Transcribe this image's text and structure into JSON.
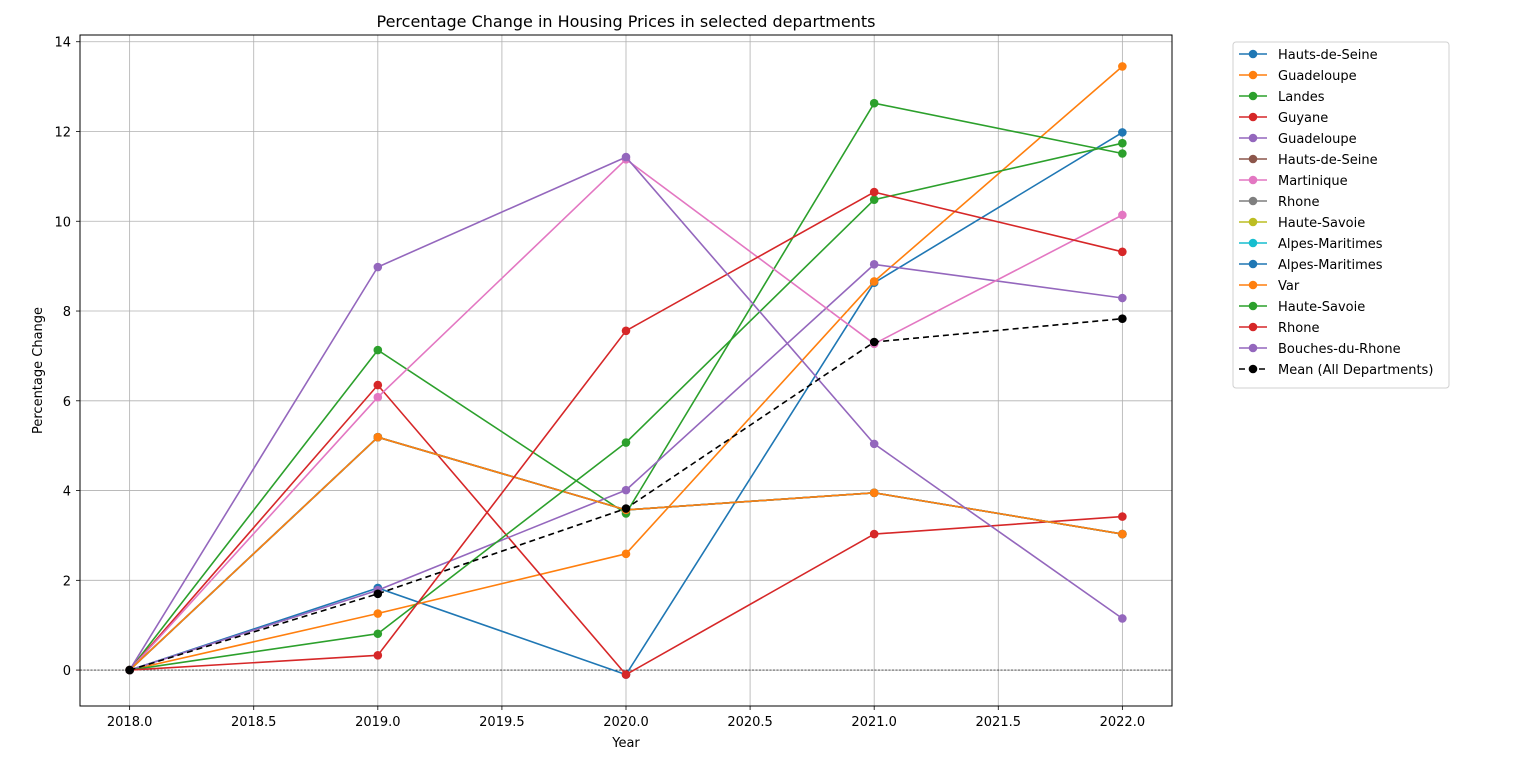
{
  "chart_data": {
    "type": "line",
    "title": "Percentage Change in Housing Prices in selected departments",
    "xlabel": "Year",
    "ylabel": "Percentage Change",
    "xlim": [
      2017.8,
      2022.2
    ],
    "ylim": [
      -0.8,
      14.15
    ],
    "xticks": [
      2018.0,
      2018.5,
      2019.0,
      2019.5,
      2020.0,
      2020.5,
      2021.0,
      2021.5,
      2022.0
    ],
    "xtick_labels": [
      "2018.0",
      "2018.5",
      "2019.0",
      "2019.5",
      "2020.0",
      "2020.5",
      "2021.0",
      "2021.5",
      "2022.0"
    ],
    "yticks": [
      0,
      2,
      4,
      6,
      8,
      10,
      12,
      14
    ],
    "ytick_labels": [
      "0",
      "2",
      "4",
      "6",
      "8",
      "10",
      "12",
      "14"
    ],
    "grid": true,
    "zero_line": true,
    "legend_position": "outside-right-top",
    "x": [
      2018,
      2019,
      2020,
      2021,
      2022
    ],
    "series": [
      {
        "name": "Hauts-de-Seine",
        "color": "#1f77b4",
        "style": "solid",
        "values": [
          0,
          1.83,
          -0.1,
          8.63,
          11.98
        ]
      },
      {
        "name": "Guadeloupe",
        "color": "#ff7f0e",
        "style": "solid",
        "values": [
          0,
          1.26,
          2.59,
          8.66,
          13.45
        ]
      },
      {
        "name": "Landes",
        "color": "#2ca02c",
        "style": "solid",
        "values": [
          0,
          7.13,
          3.49,
          12.63,
          11.51
        ]
      },
      {
        "name": "Guyane",
        "color": "#d62728",
        "style": "solid",
        "values": [
          0,
          6.35,
          -0.1,
          3.03,
          3.42
        ]
      },
      {
        "name": "Guadeloupe",
        "color": "#9467bd",
        "style": "solid",
        "values": [
          0,
          1.78,
          4.01,
          9.04,
          8.29
        ]
      },
      {
        "name": "Hauts-de-Seine",
        "color": "#8c564b",
        "style": "solid",
        "values": [
          0,
          5.19,
          3.57,
          3.95,
          3.03
        ]
      },
      {
        "name": "Martinique",
        "color": "#e377c2",
        "style": "solid",
        "values": [
          0,
          6.08,
          11.38,
          7.27,
          10.14
        ]
      },
      {
        "name": "Rhone",
        "color": "#7f7f7f",
        "style": "solid",
        "values": [
          0,
          5.19,
          3.57,
          3.95,
          3.03
        ]
      },
      {
        "name": "Haute-Savoie",
        "color": "#bcbd22",
        "style": "solid",
        "values": [
          0,
          5.19,
          3.57,
          3.95,
          3.03
        ]
      },
      {
        "name": "Alpes-Maritimes",
        "color": "#17becf",
        "style": "solid",
        "values": [
          0,
          5.19,
          3.57,
          3.95,
          3.03
        ]
      },
      {
        "name": "Alpes-Maritimes",
        "color": "#1f77b4",
        "style": "solid",
        "values": [
          0,
          5.19,
          3.57,
          3.95,
          3.03
        ]
      },
      {
        "name": "Var",
        "color": "#ff7f0e",
        "style": "solid",
        "values": [
          0,
          5.19,
          3.57,
          3.95,
          3.03
        ]
      },
      {
        "name": "Haute-Savoie",
        "color": "#2ca02c",
        "style": "solid",
        "values": [
          0,
          0.81,
          5.07,
          10.48,
          11.74
        ]
      },
      {
        "name": "Rhone",
        "color": "#d62728",
        "style": "solid",
        "values": [
          0,
          0.33,
          7.56,
          10.65,
          9.32
        ]
      },
      {
        "name": "Bouches-du-Rhone",
        "color": "#9467bd",
        "style": "solid",
        "values": [
          0,
          8.98,
          11.43,
          5.04,
          1.15
        ]
      },
      {
        "name": "Mean (All Departments)",
        "color": "#000000",
        "style": "dashed",
        "values": [
          0,
          1.7,
          3.6,
          7.31,
          7.83
        ]
      }
    ]
  }
}
